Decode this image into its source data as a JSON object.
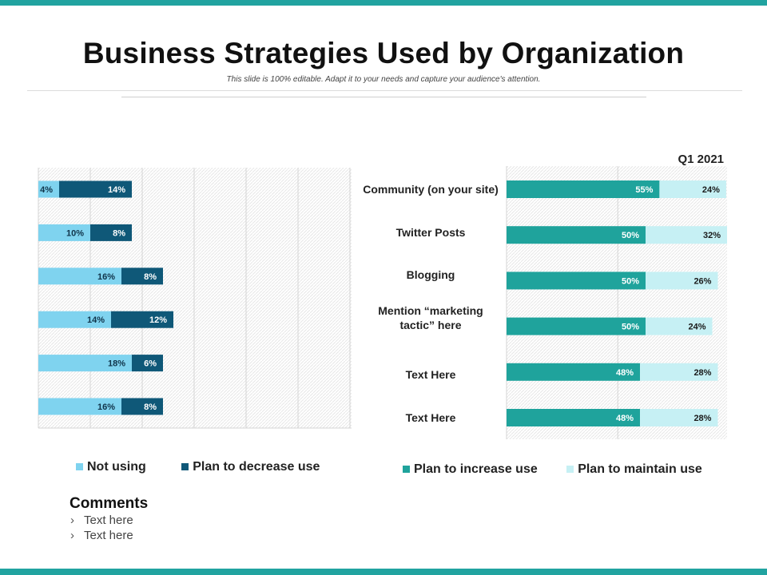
{
  "title": "Business Strategies Used by Organization",
  "subtitle": "This slide is 100% editable. Adapt it to your needs and capture your audience's attention.",
  "colors": {
    "accent": "#21a3a0",
    "not_using": "#7fd3ef",
    "plan_decrease": "#0f5878",
    "plan_increase": "#1fa39c",
    "plan_maintain": "#c6f0f4"
  },
  "chart_data": [
    {
      "type": "bar",
      "orientation": "horizontal",
      "stacked": true,
      "categories": [
        "Community (on your site)",
        "Twitter Posts",
        "Blogging",
        "Mention “marketing tactic” here",
        "Text Here",
        "Text Here"
      ],
      "series": [
        {
          "name": "Not using",
          "values": [
            4,
            10,
            16,
            14,
            18,
            16
          ],
          "labels": [
            "4%",
            "10%",
            "16%",
            "14%",
            "18%",
            "16%"
          ]
        },
        {
          "name": "Plan to decrease use",
          "values": [
            14,
            8,
            8,
            12,
            6,
            8
          ],
          "labels": [
            "14%",
            "8%",
            "8%",
            "12%",
            "6%",
            "8%"
          ]
        }
      ],
      "grid": true,
      "legend_position": "bottom"
    },
    {
      "type": "bar",
      "orientation": "horizontal",
      "stacked": true,
      "categories": [
        "Community (on your site)",
        "Twitter Posts",
        "Blogging",
        "Mention “marketing tactic” here",
        "Text Here",
        "Text Here"
      ],
      "series": [
        {
          "name": "Plan to increase use",
          "values": [
            55,
            50,
            50,
            50,
            48,
            48
          ],
          "labels": [
            "55%",
            "50%",
            "50%",
            "50%",
            "48%",
            "48%"
          ]
        },
        {
          "name": "Plan to maintain use",
          "values": [
            24,
            32,
            26,
            24,
            28,
            28
          ],
          "labels": [
            "24%",
            "32%",
            "26%",
            "24%",
            "28%",
            "28%"
          ]
        }
      ],
      "annotation": "Q1 2021",
      "grid": true,
      "legend_position": "bottom"
    }
  ],
  "category_labels": [
    [
      "Community (on your site)"
    ],
    [
      "Twitter Posts"
    ],
    [
      "Blogging"
    ],
    [
      "Mention “marketing",
      "tactic” here"
    ],
    [
      "Text Here"
    ],
    [
      "Text Here"
    ]
  ],
  "legend_left": [
    {
      "label": "Not using",
      "color": "#7fd3ef"
    },
    {
      "label": "Plan to decrease use",
      "color": "#0f5878"
    }
  ],
  "legend_right": [
    {
      "label": "Plan to increase use",
      "color": "#1fa39c"
    },
    {
      "label": "Plan to maintain use",
      "color": "#c6f0f4"
    }
  ],
  "comments": {
    "title": "Comments",
    "items": [
      "Text here",
      "Text here"
    ]
  }
}
